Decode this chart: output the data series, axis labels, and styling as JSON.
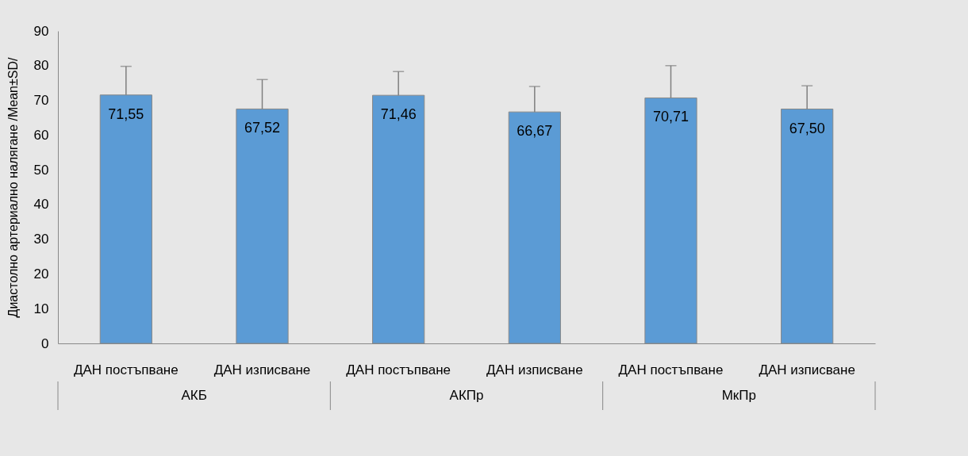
{
  "chart_data": {
    "type": "bar",
    "ylabel": "Диастолно артериално налягане /Mean±SD/",
    "categories": [
      "ДАН постъпване",
      "ДАН изписване",
      "ДАН постъпване",
      "ДАН изписване",
      "ДАН постъпване",
      "ДАН изписване"
    ],
    "values": [
      71.55,
      67.52,
      71.46,
      66.67,
      70.71,
      67.5
    ],
    "value_labels": [
      "71,55",
      "67,52",
      "71,46",
      "66,67",
      "70,71",
      "67,50"
    ],
    "errors": [
      [
        71.55,
        79.8
      ],
      [
        67.52,
        76.0
      ],
      [
        71.46,
        78.3
      ],
      [
        66.67,
        74.0
      ],
      [
        70.71,
        80.0
      ],
      [
        67.5,
        74.2
      ]
    ],
    "color": "#5b9bd5",
    "annotations": [
      "АКБ",
      "АКПр",
      "МкПр"
    ],
    "ylim": [
      0,
      90
    ],
    "yticks": [
      0,
      10,
      20,
      30,
      40,
      50,
      60,
      70,
      80,
      90
    ],
    "grid": false
  }
}
